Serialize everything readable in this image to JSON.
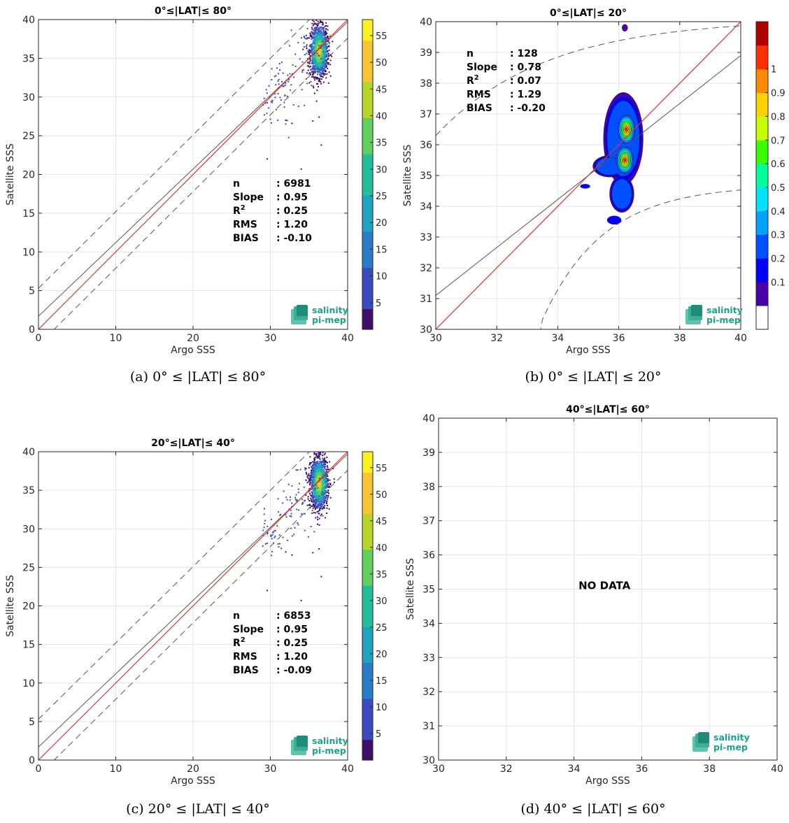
{
  "colors": {
    "one_to_one_line": "#e8312a",
    "fit_line": "#555555",
    "envelope_line": "#555555",
    "viridis": [
      "#3e0f6b",
      "#3b4cc0",
      "#2a7cc8",
      "#1fa3c0",
      "#23bf9a",
      "#62cf5d",
      "#b6d62a",
      "#f7c531",
      "#f9f41f"
    ],
    "jet_levels": [
      "#ffffff",
      "#4b00a8",
      "#0000ff",
      "#0050ff",
      "#00a0ff",
      "#00e0ff",
      "#00ff9a",
      "#38ff00",
      "#c8ff00",
      "#ffd200",
      "#ff8a00",
      "#ff3000",
      "#b00000"
    ]
  },
  "logo": {
    "line1": "salinity",
    "line2": "pi-mep",
    "icon": "salinity-pi-mep-logo-icon"
  },
  "chart_data": [
    {
      "type": "scatter",
      "title": "0°≤|LAT|≤ 80°",
      "xlabel": "Argo SSS",
      "ylabel": "Satellite SSS",
      "xlim": [
        0,
        40
      ],
      "ylim": [
        0,
        40
      ],
      "xticks": [
        "0",
        "10",
        "20",
        "30",
        "40"
      ],
      "yticks": [
        "0",
        "5",
        "10",
        "15",
        "20",
        "25",
        "30",
        "35",
        "40"
      ],
      "stats": [
        {
          "label": "n",
          "value": ": 6981"
        },
        {
          "label": "Slope",
          "value": ": 0.95"
        },
        {
          "label": "R2",
          "value": ": 0.25"
        },
        {
          "label": "RMS",
          "value": ": 1.20"
        },
        {
          "label": "BIAS",
          "value": ": -0.10"
        }
      ],
      "fit_line": {
        "slope": 0.95,
        "intercept": 1.7
      },
      "envelope": {
        "upper_intercept": 5.3,
        "lower_intercept": -2.0
      },
      "density_center": [
        36.3,
        35.9
      ],
      "colorbar": {
        "type": "continuous",
        "min": 0,
        "max": 58,
        "ticks": [
          "5",
          "10",
          "15",
          "20",
          "25",
          "30",
          "35",
          "40",
          "45",
          "50",
          "55"
        ]
      },
      "caption": "(a) 0° ≤ |LAT| ≤ 80°"
    },
    {
      "type": "contour",
      "title": "0°≤|LAT|≤ 20°",
      "xlabel": "Argo SSS",
      "ylabel": "Satellite SSS",
      "xlim": [
        30,
        40
      ],
      "ylim": [
        30,
        40
      ],
      "xticks": [
        "30",
        "32",
        "34",
        "36",
        "38",
        "40"
      ],
      "yticks": [
        "30",
        "31",
        "32",
        "33",
        "34",
        "35",
        "36",
        "37",
        "38",
        "39",
        "40"
      ],
      "stats": [
        {
          "label": "n",
          "value": ": 128"
        },
        {
          "label": "Slope",
          "value": ": 0.78"
        },
        {
          "label": "R2",
          "value": ": 0.07"
        },
        {
          "label": "RMS",
          "value": ": 1.29"
        },
        {
          "label": "BIAS",
          "value": ": -0.20"
        }
      ],
      "fit_line": {
        "slope": 0.78,
        "intercept": 7.7
      },
      "envelope": {
        "upper_at_30": 36.3,
        "lower_at_40": 34.7
      },
      "peaks": [
        [
          36.25,
          36.5
        ],
        [
          36.2,
          35.5
        ]
      ],
      "colorbar": {
        "type": "discrete",
        "min": 0,
        "max": 1,
        "ticks": [
          "0.1",
          "0.2",
          "0.3",
          "0.4",
          "0.5",
          "0.6",
          "0.7",
          "0.8",
          "0.9",
          "1"
        ]
      },
      "caption": "(b) 0° ≤ |LAT| ≤ 20°"
    },
    {
      "type": "scatter",
      "title": "20°≤|LAT|≤ 40°",
      "xlabel": "Argo SSS",
      "ylabel": "Satellite SSS",
      "xlim": [
        0,
        40
      ],
      "ylim": [
        0,
        40
      ],
      "xticks": [
        "0",
        "10",
        "20",
        "30",
        "40"
      ],
      "yticks": [
        "0",
        "5",
        "10",
        "15",
        "20",
        "25",
        "30",
        "35",
        "40"
      ],
      "stats": [
        {
          "label": "n",
          "value": ": 6853"
        },
        {
          "label": "Slope",
          "value": ": 0.95"
        },
        {
          "label": "R2",
          "value": ": 0.25"
        },
        {
          "label": "RMS",
          "value": ": 1.20"
        },
        {
          "label": "BIAS",
          "value": ": -0.09"
        }
      ],
      "fit_line": {
        "slope": 0.95,
        "intercept": 1.7
      },
      "envelope": {
        "upper_intercept": 5.3,
        "lower_intercept": -2.0
      },
      "density_center": [
        36.3,
        35.9
      ],
      "colorbar": {
        "type": "continuous",
        "min": 0,
        "max": 58,
        "ticks": [
          "5",
          "10",
          "15",
          "20",
          "25",
          "30",
          "35",
          "40",
          "45",
          "50",
          "55"
        ]
      },
      "caption": "(c) 20° ≤ |LAT| ≤ 40°"
    },
    {
      "type": "empty",
      "title": "40°≤|LAT|≤ 60°",
      "xlabel": "Argo SSS",
      "ylabel": "Satellite SSS",
      "xlim": [
        30,
        40
      ],
      "ylim": [
        30,
        40
      ],
      "xticks": [
        "30",
        "32",
        "34",
        "36",
        "38",
        "40"
      ],
      "yticks": [
        "30",
        "31",
        "32",
        "33",
        "34",
        "35",
        "36",
        "37",
        "38",
        "39",
        "40"
      ],
      "message": "NO DATA",
      "caption": "(d) 40° ≤ |LAT| ≤ 60°"
    }
  ]
}
